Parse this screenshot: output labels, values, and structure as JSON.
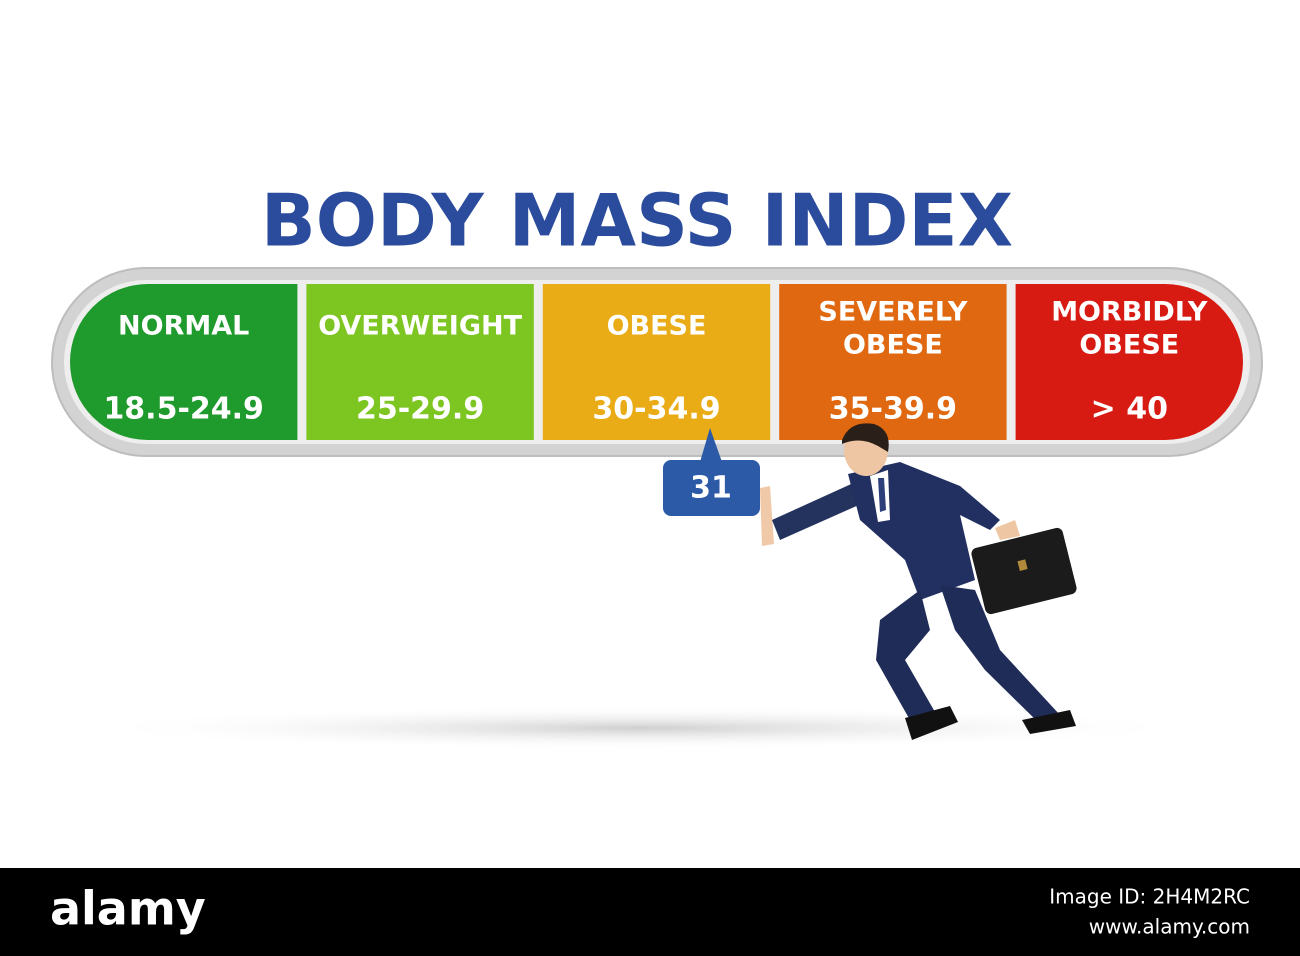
{
  "header": {
    "title": "BODY MASS INDEX"
  },
  "scale": {
    "segments": [
      {
        "label": [
          "NORMAL"
        ],
        "range": "18.5-24.9",
        "color": "#1f9a2d"
      },
      {
        "label": [
          "OVERWEIGHT"
        ],
        "range": "25-29.9",
        "color": "#7dc521"
      },
      {
        "label": [
          "OBESE"
        ],
        "range": "30-34.9",
        "color": "#e9ac16"
      },
      {
        "label": [
          "SEVERELY",
          "OBESE"
        ],
        "range": "35-39.9",
        "color": "#df6810"
      },
      {
        "label": [
          "MORBIDLY",
          "OBESE"
        ],
        "range": "> 40",
        "color": "#d71a12"
      }
    ]
  },
  "pointer": {
    "value": 31
  },
  "footer": {
    "logo": "alamy",
    "image_id": "Image ID: 2H4M2RC",
    "url": "www.alamy.com"
  }
}
